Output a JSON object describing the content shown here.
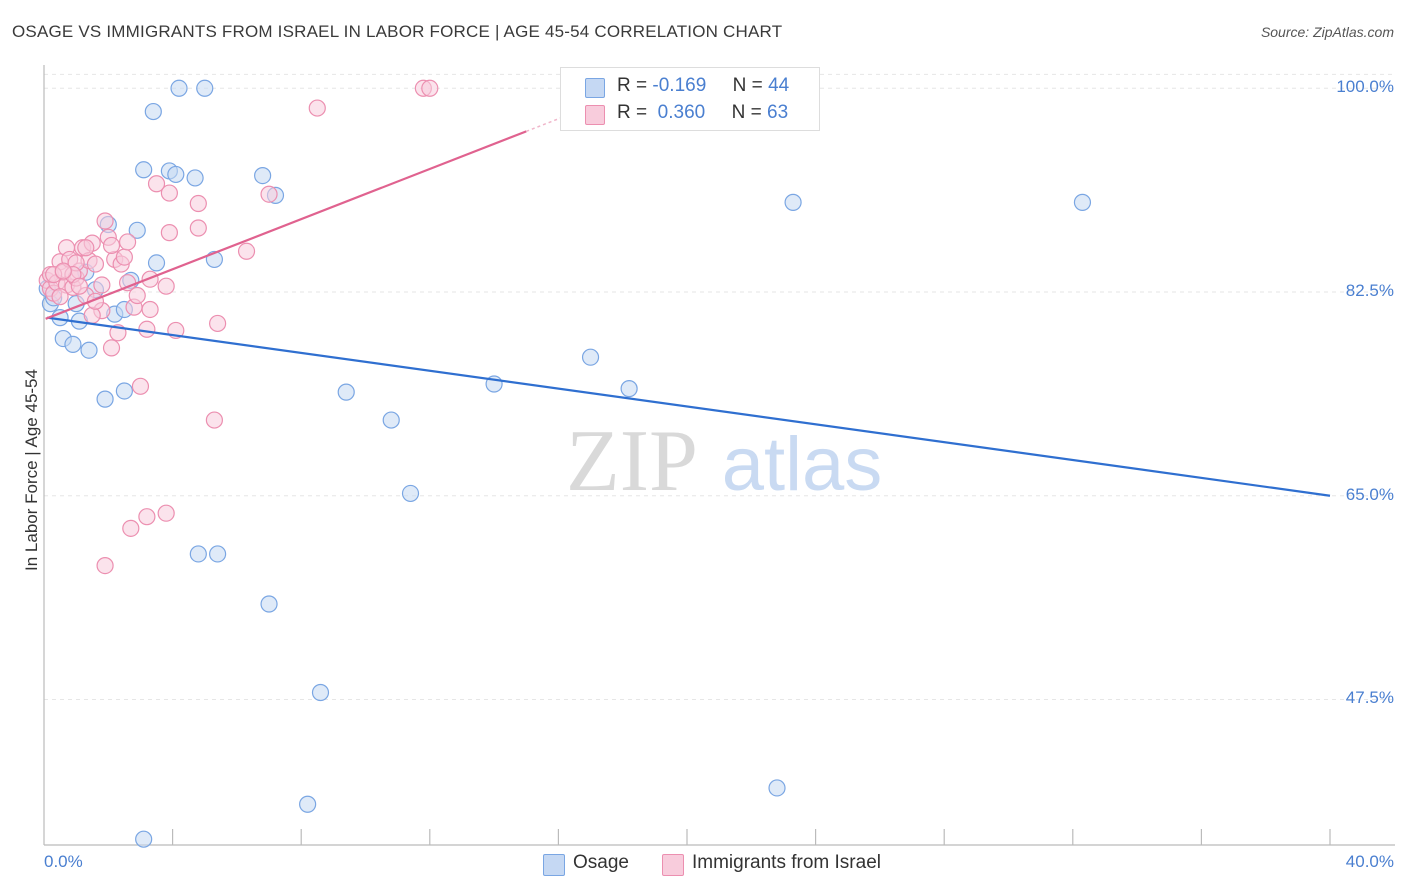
{
  "chart_data": {
    "type": "scatter",
    "title": "OSAGE VS IMMIGRANTS FROM ISRAEL IN LABOR FORCE | AGE 45-54 CORRELATION CHART",
    "source": "Source: ZipAtlas.com",
    "ylabel": "In Labor Force | Age 45-54",
    "xlabel": "",
    "xlim": [
      0,
      40
    ],
    "ylim": [
      35,
      102
    ],
    "x_tick_labels": [
      "0.0%",
      "40.0%"
    ],
    "y_ticks": [
      47.5,
      65.0,
      82.5,
      100.0
    ],
    "y_tick_labels": [
      "47.5%",
      "65.0%",
      "82.5%",
      "100.0%"
    ],
    "watermark": {
      "part1": "ZIP",
      "part2": "atlas"
    },
    "legend": {
      "osage": {
        "r_label": "R =",
        "r_value": "-0.169",
        "n_label": "N =",
        "n_value": "44"
      },
      "israel": {
        "r_label": "R =",
        "r_value": "0.360",
        "n_label": "N =",
        "n_value": "63"
      }
    },
    "series": [
      {
        "name": "Osage",
        "color": "#7aa6e3",
        "fill": "#c5d8f3",
        "line_color": "#2f6fd0",
        "trend": {
          "x0": 0.1,
          "y0": 80.3,
          "x1": 40,
          "y1": 65.0
        },
        "points": [
          [
            0.2,
            81.5
          ],
          [
            0.3,
            82.0
          ],
          [
            0.5,
            80.3
          ],
          [
            0.6,
            78.5
          ],
          [
            0.9,
            78.0
          ],
          [
            1.0,
            81.5
          ],
          [
            1.1,
            80.0
          ],
          [
            1.3,
            84.2
          ],
          [
            1.4,
            77.5
          ],
          [
            1.6,
            82.7
          ],
          [
            1.9,
            73.3
          ],
          [
            2.0,
            88.3
          ],
          [
            2.2,
            80.6
          ],
          [
            2.5,
            81.0
          ],
          [
            2.5,
            74.0
          ],
          [
            2.7,
            83.5
          ],
          [
            2.9,
            87.8
          ],
          [
            3.1,
            93.0
          ],
          [
            3.4,
            98.0
          ],
          [
            3.5,
            85.0
          ],
          [
            3.9,
            92.9
          ],
          [
            4.1,
            92.6
          ],
          [
            4.2,
            100.0
          ],
          [
            4.7,
            92.3
          ],
          [
            5.0,
            100.0
          ],
          [
            5.3,
            85.3
          ],
          [
            4.8,
            60.0
          ],
          [
            5.4,
            60.0
          ],
          [
            6.8,
            92.5
          ],
          [
            7.2,
            90.8
          ],
          [
            7.0,
            55.7
          ],
          [
            8.6,
            48.1
          ],
          [
            8.2,
            38.5
          ],
          [
            9.4,
            73.9
          ],
          [
            10.8,
            71.5
          ],
          [
            11.4,
            65.2
          ],
          [
            14.0,
            74.6
          ],
          [
            17.0,
            76.9
          ],
          [
            18.2,
            74.2
          ],
          [
            23.3,
            90.2
          ],
          [
            22.8,
            39.9
          ],
          [
            32.3,
            90.2
          ],
          [
            3.1,
            35.5
          ],
          [
            0.1,
            82.8
          ]
        ]
      },
      {
        "name": "Immigrants from Israel",
        "color": "#ec8fb0",
        "fill": "#f8ccdc",
        "line_color": "#e0628f",
        "trend": {
          "x0": 0.05,
          "y0": 80.2,
          "x1": 15.0,
          "y1": 96.3
        },
        "points": [
          [
            0.1,
            83.5
          ],
          [
            0.2,
            82.8
          ],
          [
            0.2,
            84.0
          ],
          [
            0.3,
            82.4
          ],
          [
            0.4,
            83.3
          ],
          [
            0.5,
            85.1
          ],
          [
            0.6,
            84.2
          ],
          [
            0.7,
            86.3
          ],
          [
            0.7,
            83.1
          ],
          [
            0.8,
            85.3
          ],
          [
            0.9,
            82.9
          ],
          [
            1.0,
            83.7
          ],
          [
            1.1,
            84.3
          ],
          [
            1.2,
            86.3
          ],
          [
            1.3,
            82.2
          ],
          [
            1.4,
            85.2
          ],
          [
            1.5,
            86.7
          ],
          [
            1.6,
            84.9
          ],
          [
            1.8,
            83.1
          ],
          [
            1.8,
            80.9
          ],
          [
            1.9,
            88.6
          ],
          [
            2.0,
            87.2
          ],
          [
            2.1,
            77.7
          ],
          [
            2.2,
            85.3
          ],
          [
            2.3,
            79.0
          ],
          [
            2.4,
            84.9
          ],
          [
            2.5,
            85.5
          ],
          [
            2.6,
            86.8
          ],
          [
            2.8,
            81.2
          ],
          [
            2.9,
            82.2
          ],
          [
            3.0,
            74.4
          ],
          [
            3.2,
            79.3
          ],
          [
            3.3,
            81.0
          ],
          [
            3.5,
            91.8
          ],
          [
            3.8,
            83.0
          ],
          [
            3.9,
            87.6
          ],
          [
            3.9,
            91.0
          ],
          [
            4.1,
            79.2
          ],
          [
            4.8,
            90.1
          ],
          [
            4.8,
            88.0
          ],
          [
            5.3,
            71.5
          ],
          [
            5.4,
            79.8
          ],
          [
            6.3,
            86.0
          ],
          [
            7.0,
            90.9
          ],
          [
            2.7,
            62.2
          ],
          [
            3.2,
            63.2
          ],
          [
            3.8,
            63.5
          ],
          [
            1.9,
            59.0
          ],
          [
            8.5,
            98.3
          ],
          [
            11.8,
            100.0
          ],
          [
            12.0,
            100.0
          ],
          [
            1.0,
            85.0
          ],
          [
            0.5,
            82.1
          ],
          [
            1.5,
            80.5
          ],
          [
            2.1,
            86.5
          ],
          [
            0.3,
            84.0
          ],
          [
            0.9,
            84.0
          ],
          [
            1.6,
            81.7
          ],
          [
            1.1,
            83.0
          ],
          [
            2.6,
            83.3
          ],
          [
            1.3,
            86.3
          ],
          [
            0.6,
            84.3
          ],
          [
            3.3,
            83.6
          ]
        ]
      }
    ]
  }
}
